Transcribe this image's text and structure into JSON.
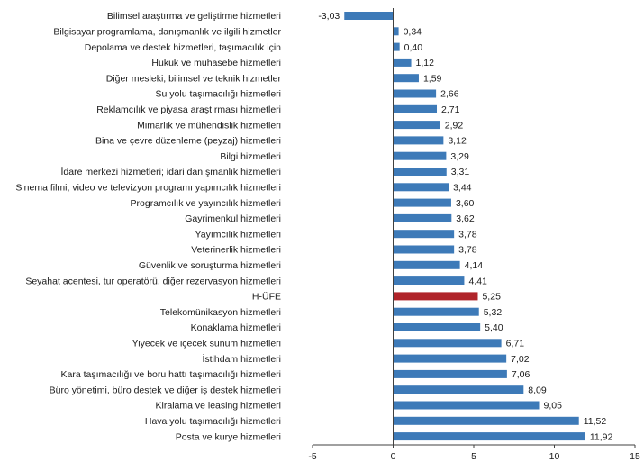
{
  "chart_data": {
    "type": "bar",
    "orientation": "horizontal",
    "categories": [
      "Bilimsel araştırma ve geliştirme hizmetleri",
      "Bilgisayar programlama, danışmanlık ve ilgili hizmetler",
      "Depolama ve destek hizmetleri, taşımacılık için",
      "Hukuk ve muhasebe hizmetleri",
      "Diğer mesleki, bilimsel ve teknik hizmetler",
      "Su yolu taşımacılığı hizmetleri",
      "Reklamcılık ve piyasa araştırması hizmetleri",
      "Mimarlık ve mühendislik hizmetleri",
      "Bina ve çevre düzenleme (peyzaj) hizmetleri",
      "Bilgi hizmetleri",
      "İdare merkezi hizmetleri; idari danışmanlık hizmetleri",
      "Sinema filmi, video ve televizyon programı yapımcılık hizmetleri",
      "Programcılık ve yayıncılık hizmetleri",
      "Gayrimenkul hizmetleri",
      "Yayımcılık hizmetleri",
      "Veterinerlik hizmetleri",
      "Güvenlik ve soruşturma hizmetleri",
      "Seyahat acentesi, tur operatörü, diğer rezervasyon hizmetleri",
      "H-ÜFE",
      "Telekomünikasyon hizmetleri",
      "Konaklama hizmetleri",
      "Yiyecek ve içecek sunum hizmetleri",
      "İstihdam hizmetleri",
      "Kara taşımacılığı ve boru hattı taşımacılığı hizmetleri",
      "Büro yönetimi, büro destek ve diğer iş destek hizmetleri",
      "Kiralama ve leasing hizmetleri",
      "Hava yolu taşımacılığı hizmetleri",
      "Posta ve kurye hizmetleri"
    ],
    "values": [
      -3.03,
      0.34,
      0.4,
      1.12,
      1.59,
      2.66,
      2.71,
      2.92,
      3.12,
      3.29,
      3.31,
      3.44,
      3.6,
      3.62,
      3.78,
      3.78,
      4.14,
      4.41,
      5.25,
      5.32,
      5.4,
      6.71,
      7.02,
      7.06,
      8.09,
      9.05,
      11.52,
      11.92
    ],
    "value_labels": [
      "-3,03",
      "0,34",
      "0,40",
      "1,12",
      "1,59",
      "2,66",
      "2,71",
      "2,92",
      "3,12",
      "3,29",
      "3,31",
      "3,44",
      "3,60",
      "3,62",
      "3,78",
      "3,78",
      "4,14",
      "4,41",
      "5,25",
      "5,32",
      "5,40",
      "6,71",
      "7,02",
      "7,06",
      "8,09",
      "9,05",
      "11,52",
      "11,92"
    ],
    "highlight_category": "H-ÜFE",
    "xlim": [
      -5,
      15
    ],
    "xticks": [
      -5,
      0,
      5,
      10,
      15
    ],
    "xtick_labels": [
      "-5",
      "0",
      "5",
      "10",
      "15"
    ],
    "grid": false,
    "legend": false,
    "title": "",
    "xlabel": "",
    "ylabel": "",
    "colors": {
      "bar": "#3d7ab8",
      "highlight": "#b0242a",
      "axis": "#404040",
      "text": "#1a1a1a"
    }
  }
}
